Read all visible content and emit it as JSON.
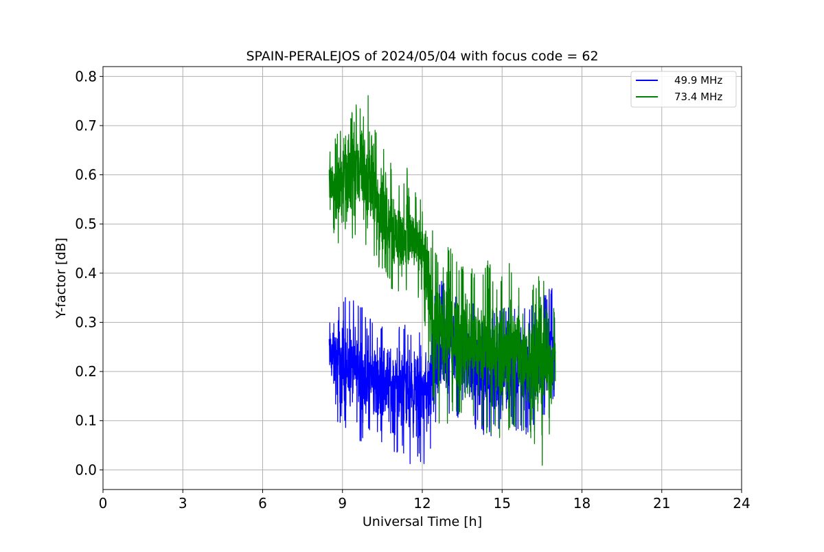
{
  "chart_data": {
    "type": "line",
    "title": "SPAIN-PERALEJOS of 2024/05/04 with focus code = 62",
    "xlabel": "Universal Time [h]",
    "ylabel": "Y-factor [dB]",
    "xlim": [
      0,
      24
    ],
    "ylim": [
      -0.04,
      0.82
    ],
    "xticks": [
      0,
      3,
      6,
      9,
      12,
      15,
      18,
      21,
      24
    ],
    "yticks": [
      0.0,
      0.1,
      0.2,
      0.3,
      0.4,
      0.5,
      0.6,
      0.7,
      0.8
    ],
    "grid": true,
    "legend_position": "top-right",
    "series": [
      {
        "name": "49.9 MHz",
        "color": "#0000ff",
        "x": [
          8.5,
          8.75,
          9.0,
          9.25,
          9.5,
          9.75,
          10.0,
          10.25,
          10.5,
          10.75,
          11.0,
          11.25,
          11.5,
          11.75,
          12.0,
          12.25,
          12.5,
          12.75,
          13.0,
          13.25,
          13.5,
          13.75,
          14.0,
          14.25,
          14.5,
          14.75,
          15.0,
          15.25,
          15.5,
          15.75,
          16.0,
          16.25,
          16.5,
          16.75,
          17.0
        ],
        "values": [
          0.24,
          0.22,
          0.21,
          0.2,
          0.2,
          0.19,
          0.19,
          0.18,
          0.18,
          0.18,
          0.17,
          0.17,
          0.17,
          0.16,
          0.16,
          0.16,
          0.2,
          0.23,
          0.24,
          0.24,
          0.23,
          0.22,
          0.21,
          0.2,
          0.2,
          0.19,
          0.19,
          0.19,
          0.2,
          0.2,
          0.2,
          0.21,
          0.22,
          0.24,
          0.25
        ],
        "min": [
          0.16,
          0.09,
          0.09,
          0.08,
          0.06,
          0.05,
          0.07,
          0.05,
          0.04,
          0.03,
          0.02,
          0.03,
          0.0,
          0.02,
          0.01,
          0.02,
          0.09,
          0.09,
          0.1,
          0.11,
          0.1,
          0.09,
          0.08,
          0.07,
          0.07,
          0.06,
          0.07,
          0.08,
          0.08,
          0.07,
          0.07,
          0.08,
          0.1,
          0.12,
          0.15
        ],
        "max": [
          0.34,
          0.33,
          0.36,
          0.35,
          0.35,
          0.33,
          0.32,
          0.31,
          0.3,
          0.29,
          0.3,
          0.3,
          0.29,
          0.28,
          0.28,
          0.29,
          0.38,
          0.39,
          0.38,
          0.37,
          0.36,
          0.35,
          0.34,
          0.33,
          0.33,
          0.32,
          0.33,
          0.34,
          0.33,
          0.34,
          0.33,
          0.34,
          0.35,
          0.37,
          0.37
        ]
      },
      {
        "name": "73.4 MHz",
        "color": "#008000",
        "x": [
          8.5,
          8.75,
          9.0,
          9.25,
          9.5,
          9.75,
          10.0,
          10.25,
          10.5,
          10.75,
          11.0,
          11.25,
          11.5,
          11.75,
          12.0,
          12.25,
          12.5,
          12.75,
          13.0,
          13.25,
          13.5,
          13.75,
          14.0,
          14.25,
          14.5,
          14.75,
          15.0,
          15.25,
          15.5,
          15.75,
          16.0,
          16.25,
          16.5,
          16.75,
          17.0
        ],
        "values": [
          0.6,
          0.58,
          0.59,
          0.61,
          0.62,
          0.6,
          0.58,
          0.56,
          0.54,
          0.52,
          0.48,
          0.47,
          0.47,
          0.46,
          0.44,
          0.38,
          0.28,
          0.27,
          0.28,
          0.27,
          0.26,
          0.25,
          0.26,
          0.25,
          0.24,
          0.23,
          0.24,
          0.25,
          0.25,
          0.24,
          0.23,
          0.22,
          0.23,
          0.22,
          0.22
        ],
        "min": [
          0.5,
          0.46,
          0.42,
          0.45,
          0.47,
          0.44,
          0.44,
          0.42,
          0.4,
          0.38,
          0.34,
          0.36,
          0.36,
          0.35,
          0.35,
          0.2,
          0.1,
          0.06,
          0.1,
          0.11,
          0.1,
          0.09,
          0.1,
          0.08,
          0.07,
          0.07,
          0.05,
          0.08,
          0.07,
          0.08,
          0.07,
          0.05,
          0.0,
          0.05,
          0.14
        ],
        "max": [
          0.67,
          0.68,
          0.7,
          0.72,
          0.75,
          0.73,
          0.78,
          0.69,
          0.66,
          0.63,
          0.62,
          0.56,
          0.65,
          0.58,
          0.55,
          0.53,
          0.45,
          0.42,
          0.46,
          0.43,
          0.42,
          0.41,
          0.41,
          0.4,
          0.43,
          0.38,
          0.4,
          0.43,
          0.39,
          0.38,
          0.37,
          0.38,
          0.42,
          0.34,
          0.33
        ]
      }
    ]
  }
}
